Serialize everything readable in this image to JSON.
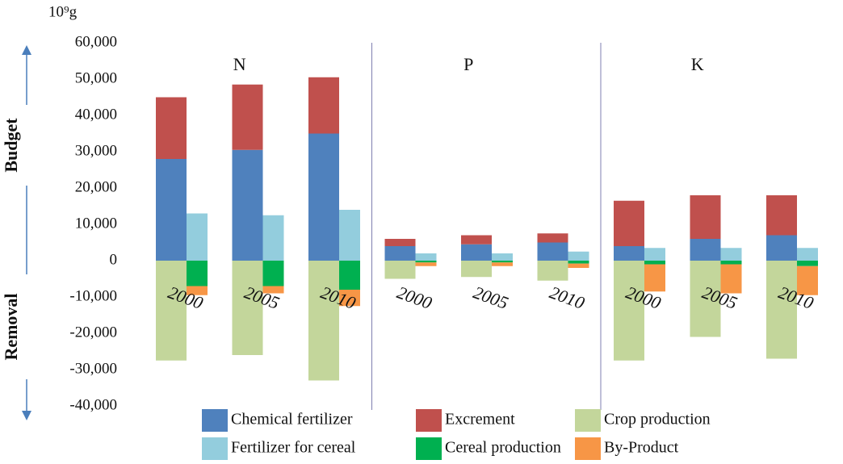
{
  "chart_data": {
    "type": "bar",
    "y_unit": "10⁹g",
    "upper_label": "Budget",
    "lower_label": "Removal",
    "groups": [
      "N",
      "P",
      "K"
    ],
    "categories": [
      "2000",
      "2005",
      "2010",
      "2000",
      "2005",
      "2010",
      "2000",
      "2005",
      "2010"
    ],
    "series": [
      {
        "name": "Chemical fertilizer",
        "color": "#4f81bd",
        "stack": "main",
        "values": [
          28000,
          30500,
          35000,
          4000,
          4500,
          5000,
          4000,
          6000,
          7000
        ]
      },
      {
        "name": "Excrement",
        "color": "#c0504d",
        "stack": "main",
        "values": [
          17000,
          18000,
          15500,
          2000,
          2500,
          2500,
          12500,
          12000,
          11000
        ]
      },
      {
        "name": "Crop production",
        "color": "#c3d69b",
        "stack": "main",
        "values": [
          -27500,
          -26000,
          -33000,
          -5000,
          -4500,
          -5500,
          -27500,
          -21000,
          -27000
        ]
      },
      {
        "name": "Fertilizer for cereal",
        "color": "#93cddd",
        "stack": "side",
        "values": [
          13000,
          12500,
          14000,
          2000,
          2000,
          2500,
          3500,
          3500,
          3500
        ]
      },
      {
        "name": "Cereal production",
        "color": "#00b050",
        "stack": "side",
        "values": [
          -7000,
          -7000,
          -8000,
          -500,
          -500,
          -800,
          -1000,
          -1000,
          -1500
        ]
      },
      {
        "name": "By-Product",
        "color": "#f79646",
        "stack": "side",
        "values": [
          -2500,
          -2000,
          -4500,
          -1000,
          -1000,
          -1200,
          -7500,
          -8000,
          -8000
        ]
      }
    ],
    "ylim": [
      -40000,
      60000
    ],
    "yticks": [
      {
        "value": -40000,
        "label": "-40,000"
      },
      {
        "value": -30000,
        "label": "-30,000"
      },
      {
        "value": -20000,
        "label": "-20,000"
      },
      {
        "value": -10000,
        "label": "-10,000"
      },
      0,
      {
        "value": 10000,
        "label": "10,000"
      },
      {
        "value": 20000,
        "label": "20,000"
      },
      {
        "value": 30000,
        "label": "30,000"
      },
      {
        "value": 40000,
        "label": "40,000"
      },
      {
        "value": 50000,
        "label": "50,000"
      },
      {
        "value": 60000,
        "label": "60,000"
      }
    ],
    "grid": false
  }
}
